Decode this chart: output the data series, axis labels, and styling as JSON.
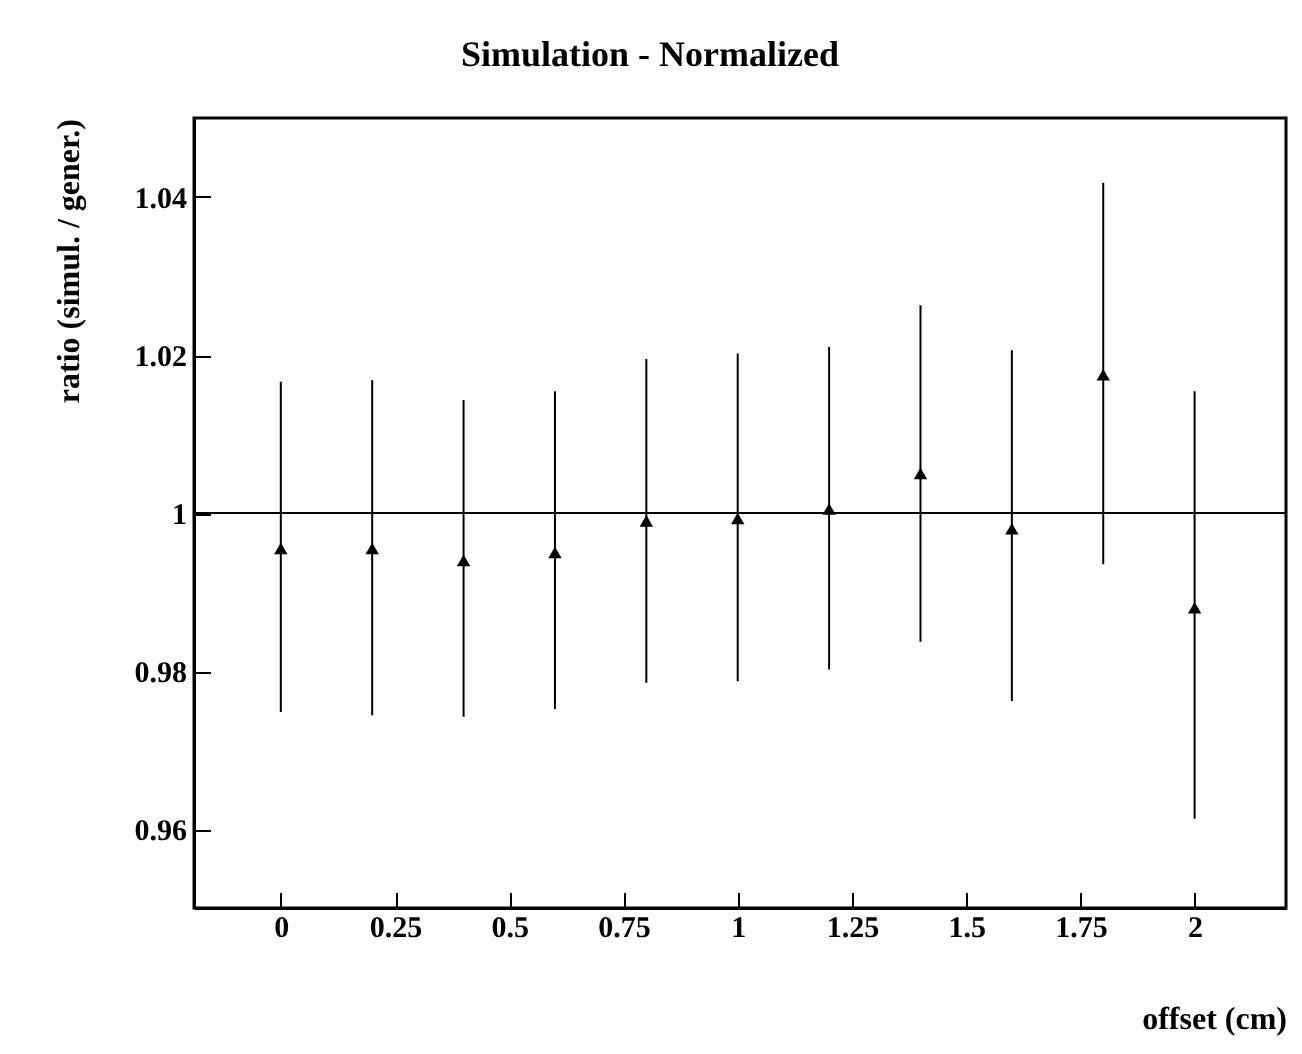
{
  "chart_data": {
    "type": "scatter",
    "title": "Simulation - Normalized",
    "xlabel": "offset (cm)",
    "ylabel": "ratio (simul. / gener.)",
    "x": [
      0,
      0.2,
      0.4,
      0.6,
      0.8,
      1.0,
      1.2,
      1.4,
      1.6,
      1.8,
      2.0
    ],
    "values": [
      0.9955,
      0.9955,
      0.994,
      0.995,
      0.999,
      0.9993,
      1.0005,
      1.005,
      0.998,
      1.0175,
      0.988
    ],
    "errors": [
      [
        0.9748,
        1.0166
      ],
      [
        0.9744,
        1.0168
      ],
      [
        0.9742,
        1.0143
      ],
      [
        0.9752,
        1.0154
      ],
      [
        0.9785,
        1.0195
      ],
      [
        0.9787,
        1.0202
      ],
      [
        0.9802,
        1.021
      ],
      [
        0.9837,
        1.0263
      ],
      [
        0.9762,
        1.0206
      ],
      [
        0.9935,
        1.0418
      ],
      [
        0.9613,
        1.0154
      ]
    ],
    "color": "#000000",
    "marker": "triangle",
    "xlim": [
      -0.19,
      2.2
    ],
    "xticks": [
      0,
      0.25,
      0.5,
      0.75,
      1,
      1.25,
      1.5,
      1.75,
      2
    ],
    "ylim": [
      0.95,
      1.05
    ],
    "yticks": [
      0.96,
      0.98,
      1,
      1.02,
      1.04
    ],
    "ref_lines": [
      {
        "axis": "y",
        "value": 1,
        "color": "#000000"
      }
    ],
    "grid": false
  }
}
